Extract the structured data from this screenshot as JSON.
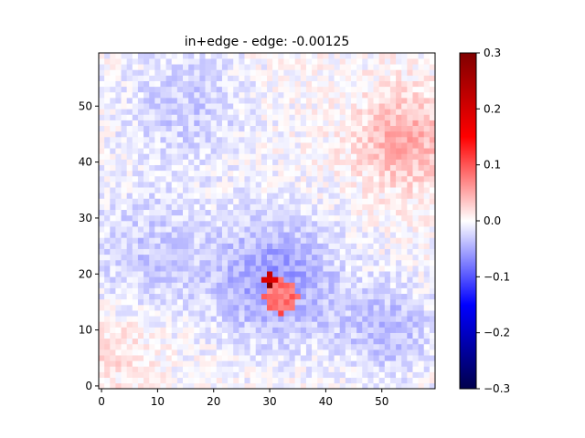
{
  "chart_data": {
    "type": "heatmap",
    "title": "in+edge - edge: -0.00125",
    "xlabel": "",
    "ylabel": "",
    "grid_size": [
      60,
      60
    ],
    "xlim": [
      -0.5,
      59.5
    ],
    "ylim": [
      -0.5,
      59.5
    ],
    "x_ticks": [
      0,
      10,
      20,
      30,
      40,
      50
    ],
    "y_ticks": [
      0,
      10,
      20,
      30,
      40,
      50
    ],
    "colormap": "seismic",
    "vmin": -0.3,
    "vmax": 0.3,
    "colorbar_ticks": [
      -0.3,
      -0.2,
      -0.1,
      0.0,
      0.1,
      0.2,
      0.3
    ],
    "colorbar_tick_labels": [
      "−0.3",
      "−0.2",
      "−0.1",
      "0.0",
      "0.1",
      "0.2",
      "0.3"
    ],
    "grid": false,
    "regions": [
      {
        "description": "strong positive core",
        "center": [
          32,
          16
        ],
        "radius": 3,
        "value": 0.14
      },
      {
        "description": "dark red peak",
        "center": [
          30,
          19
        ],
        "radius": 1,
        "value": 0.26
      },
      {
        "description": "blue halo around core",
        "center": [
          31,
          19
        ],
        "radius": 8,
        "value": -0.06
      },
      {
        "description": "positive patch upper right",
        "center": [
          54,
          44
        ],
        "radius": 6,
        "value": 0.05
      },
      {
        "description": "blue patch lower right",
        "center": [
          51,
          10
        ],
        "radius": 6,
        "value": -0.04
      },
      {
        "description": "light blue band upper left",
        "center": [
          15,
          50
        ],
        "radius": 8,
        "value": -0.03
      },
      {
        "description": "light blue band left middle",
        "center": [
          8,
          24
        ],
        "radius": 8,
        "value": -0.03
      },
      {
        "description": "faint positive lower left",
        "center": [
          3,
          6
        ],
        "radius": 5,
        "value": 0.02
      }
    ]
  }
}
